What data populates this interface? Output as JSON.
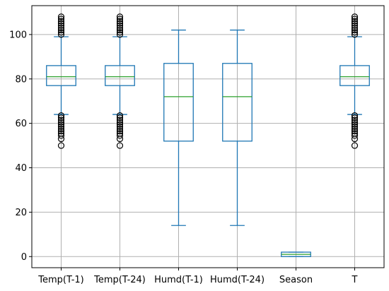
{
  "chart_data": {
    "type": "box",
    "title": "",
    "xlabel": "",
    "ylabel": "",
    "ylim": [
      -5,
      113
    ],
    "yticks": [
      0,
      20,
      40,
      60,
      80,
      100
    ],
    "grid": true,
    "categories": [
      "Temp(T-1)",
      "Temp(T-24)",
      "Humd(T-1)",
      "Humd(T-24)",
      "Season",
      "T"
    ],
    "boxes": [
      {
        "name": "Temp(T-1)",
        "whisker_low": 64,
        "q1": 77,
        "median": 81,
        "q3": 86,
        "whisker_high": 99,
        "fliers": [
          50,
          53,
          54.5,
          55.5,
          56.5,
          57.5,
          58.5,
          59.5,
          60.5,
          61.5,
          62.5,
          63.5,
          100,
          101,
          102,
          103,
          104,
          105,
          106,
          107,
          108
        ]
      },
      {
        "name": "Temp(T-24)",
        "whisker_low": 64,
        "q1": 77,
        "median": 81,
        "q3": 86,
        "whisker_high": 99,
        "fliers": [
          50,
          53,
          54.5,
          55.5,
          56.5,
          57.5,
          58.5,
          59.5,
          60.5,
          61.5,
          62.5,
          63.5,
          100,
          101,
          102,
          103,
          104,
          105,
          106,
          107,
          108
        ]
      },
      {
        "name": "Humd(T-1)",
        "whisker_low": 14,
        "q1": 52,
        "median": 72,
        "q3": 87,
        "whisker_high": 102,
        "fliers": []
      },
      {
        "name": "Humd(T-24)",
        "whisker_low": 14,
        "q1": 52,
        "median": 72,
        "q3": 87,
        "whisker_high": 102,
        "fliers": []
      },
      {
        "name": "Season",
        "whisker_low": 0,
        "q1": 0,
        "median": 1,
        "q3": 2,
        "whisker_high": 2,
        "fliers": []
      },
      {
        "name": "T",
        "whisker_low": 64,
        "q1": 77,
        "median": 81,
        "q3": 86,
        "whisker_high": 99,
        "fliers": [
          50,
          53,
          54.5,
          55.5,
          56.5,
          57.5,
          58.5,
          59.5,
          60.5,
          61.5,
          62.5,
          63.5,
          100,
          101,
          102,
          103,
          104,
          105,
          106,
          107,
          108
        ]
      }
    ],
    "colors": {
      "box": "#1f77b4",
      "median": "#2ca02c",
      "flier": "#000000",
      "grid": "#b0b0b0"
    }
  }
}
